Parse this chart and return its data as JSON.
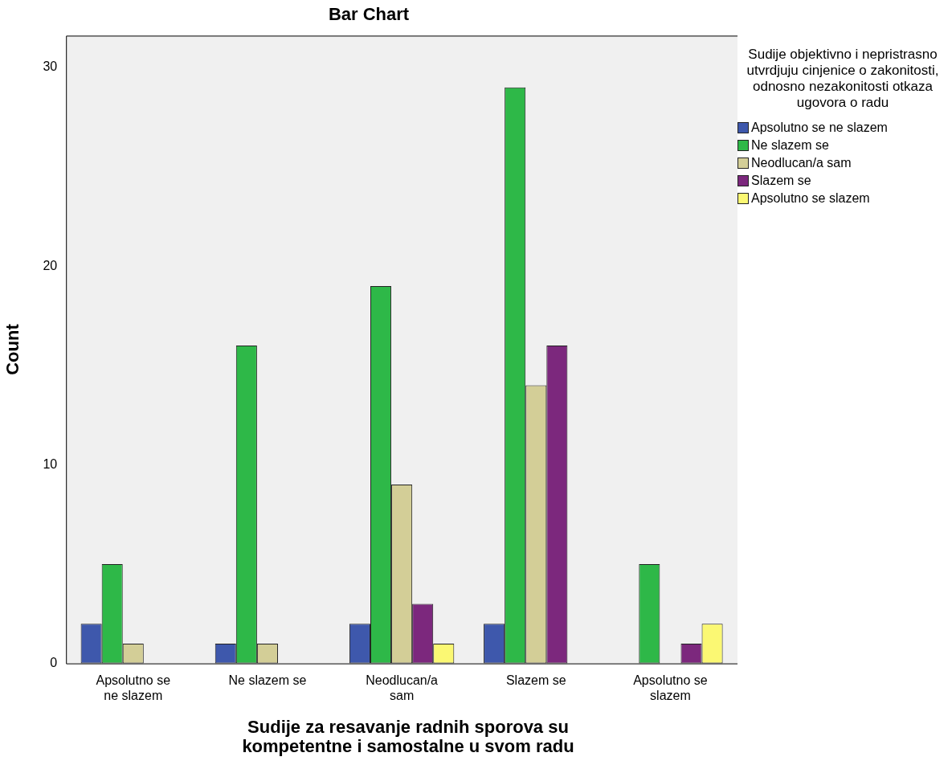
{
  "chart_data": {
    "type": "bar",
    "title": "Bar Chart",
    "xlabel": "Sudije za resavanje radnih sporova su kompetentne i samostalne u svom radu",
    "ylabel": "Count",
    "legend_title": "Sudije objektivno i nepristrasno utvrdjuju cinjenice o zakonitosti, odnosno nezakonitosti otkaza ugovora o radu",
    "categories": [
      "Apsolutno se ne slazem",
      "Ne slazem se",
      "Neodlucan/a sam",
      "Slazem se",
      "Apsolutno se slazem"
    ],
    "series": [
      {
        "name": "Apsolutno se ne slazem",
        "color": "#3e58ac",
        "values": [
          2,
          1,
          2,
          2,
          null
        ]
      },
      {
        "name": "Ne slazem se",
        "color": "#2eb848",
        "values": [
          5,
          16,
          19,
          29,
          5
        ]
      },
      {
        "name": "Neodlucan/a sam",
        "color": "#d3ce97",
        "values": [
          1,
          1,
          9,
          14,
          null
        ]
      },
      {
        "name": "Slazem se",
        "color": "#7c287d",
        "values": [
          null,
          null,
          3,
          16,
          1
        ]
      },
      {
        "name": "Apsolutno se slazem",
        "color": "#fbf873",
        "values": [
          null,
          null,
          1,
          null,
          2
        ]
      }
    ],
    "ylim": [
      0,
      31.6
    ],
    "yticks": [
      0,
      10,
      20,
      30
    ],
    "legend": "right"
  }
}
